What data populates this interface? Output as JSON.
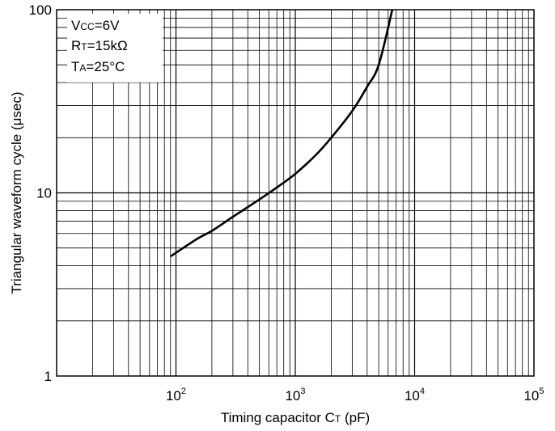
{
  "chart_data": {
    "type": "line",
    "xlabel": {
      "main": "Timing capacitor C",
      "sub": "T",
      "unit": " (pF)"
    },
    "ylabel": "Triangular waveform cycle (μsec)",
    "x_scale": "log",
    "y_scale": "log",
    "xlim": [
      10,
      100000
    ],
    "ylim": [
      1,
      100
    ],
    "x_ticks": [
      {
        "base": "10",
        "exp": "2"
      },
      {
        "base": "10",
        "exp": "3"
      },
      {
        "base": "10",
        "exp": "4"
      },
      {
        "base": "10",
        "exp": "5"
      }
    ],
    "y_ticks": [
      "1",
      "10",
      "100"
    ],
    "grid": true,
    "conditions": [
      {
        "main": "V",
        "sub": "CC",
        "rest": "=6V"
      },
      {
        "main": "R",
        "sub": "T",
        "rest": "=15kΩ"
      },
      {
        "main": "T",
        "sub": "A",
        "rest": "=25°C"
      }
    ],
    "series": [
      {
        "x": [
          90,
          150,
          200,
          300,
          500,
          700,
          1000,
          1500,
          2000,
          3000,
          4000,
          5000,
          6500
        ],
        "y": [
          4.5,
          5.6,
          6.2,
          7.4,
          9.2,
          10.7,
          12.7,
          16.2,
          20,
          28,
          38,
          50,
          100
        ]
      }
    ]
  }
}
